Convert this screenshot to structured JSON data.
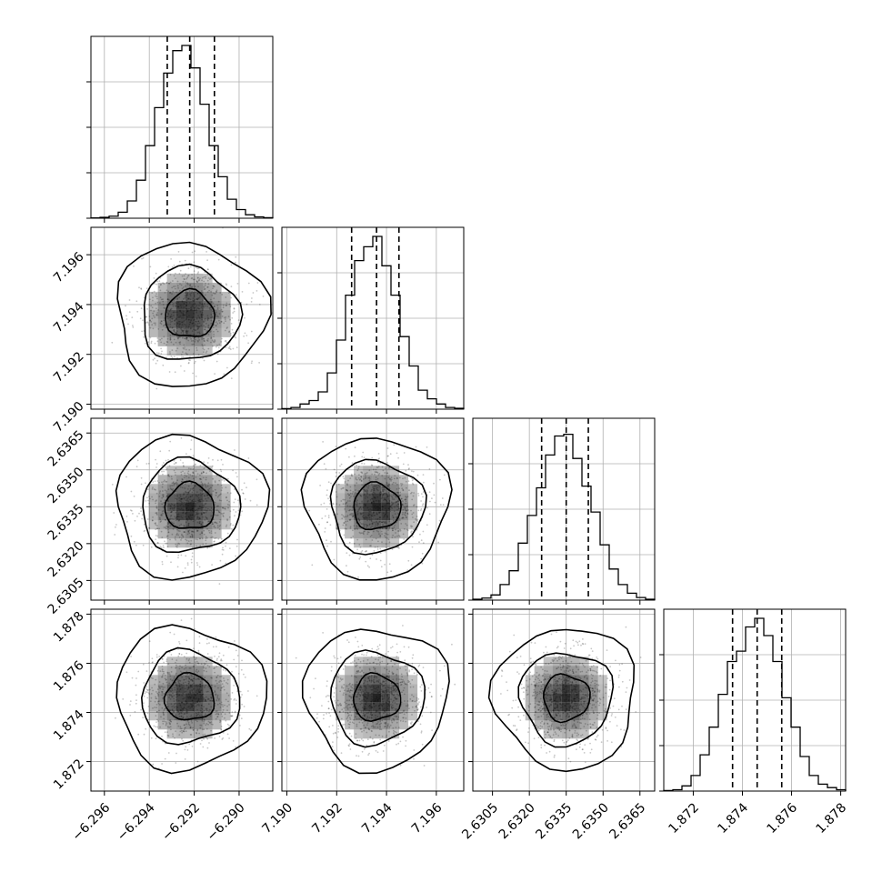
{
  "chart_data": {
    "type": "corner",
    "grid": true,
    "colors": {
      "line": "#000000",
      "grid": "#b0b0b0",
      "points": "#000000",
      "density": "#000000"
    },
    "parameters": [
      {
        "range": [
          -6.2966,
          -6.2885
        ],
        "ticks": [
          "−6.296",
          "−6.294",
          "−6.292",
          "−6.290"
        ],
        "tick_values": [
          -6.296,
          -6.294,
          -6.292,
          -6.29
        ],
        "mean": -6.2922,
        "sigma": 0.0011,
        "quantiles": [
          -6.2932,
          -6.2922,
          -6.2911
        ]
      },
      {
        "range": [
          7.1898,
          7.1971
        ],
        "ticks": [
          "7.190",
          "7.192",
          "7.194",
          "7.196"
        ],
        "tick_values": [
          7.19,
          7.192,
          7.194,
          7.196
        ],
        "mean": 7.1936,
        "sigma": 0.00095,
        "quantiles": [
          7.1926,
          7.1936,
          7.1945
        ]
      },
      {
        "range": [
          2.6297,
          2.6371
        ],
        "ticks": [
          "2.6305",
          "2.6320",
          "2.6335",
          "2.6350",
          "2.6365"
        ],
        "tick_values": [
          2.6305,
          2.632,
          2.6335,
          2.635,
          2.6365
        ],
        "mean": 2.6335,
        "sigma": 0.00095,
        "quantiles": [
          2.6325,
          2.6335,
          2.6344
        ]
      },
      {
        "range": [
          1.8708,
          1.8782
        ],
        "ticks": [
          "1.872",
          "1.874",
          "1.876",
          "1.878"
        ],
        "tick_values": [
          1.872,
          1.874,
          1.876,
          1.878
        ],
        "mean": 1.8746,
        "sigma": 0.00095,
        "quantiles": [
          1.8736,
          1.8746,
          1.8756
        ]
      }
    ],
    "histograms": [
      [
        0.002,
        0.005,
        0.012,
        0.035,
        0.1,
        0.22,
        0.42,
        0.64,
        0.84,
        0.97,
        1.0,
        0.87,
        0.66,
        0.42,
        0.24,
        0.11,
        0.05,
        0.02,
        0.008,
        0.003
      ],
      [
        0.003,
        0.01,
        0.03,
        0.05,
        0.1,
        0.21,
        0.4,
        0.66,
        0.86,
        0.94,
        1.0,
        0.83,
        0.66,
        0.42,
        0.25,
        0.11,
        0.06,
        0.03,
        0.01,
        0.005
      ],
      [
        0.005,
        0.012,
        0.03,
        0.09,
        0.17,
        0.33,
        0.49,
        0.65,
        0.84,
        0.95,
        0.96,
        0.82,
        0.66,
        0.51,
        0.32,
        0.18,
        0.09,
        0.04,
        0.015,
        0.005
      ],
      [
        0.003,
        0.008,
        0.03,
        0.09,
        0.21,
        0.37,
        0.56,
        0.75,
        0.81,
        0.95,
        1.0,
        0.9,
        0.75,
        0.54,
        0.37,
        0.2,
        0.09,
        0.04,
        0.02,
        0.008
      ]
    ],
    "contour_levels": [
      0.39,
      0.86,
      0.99
    ],
    "samples_per_panel": 900
  }
}
